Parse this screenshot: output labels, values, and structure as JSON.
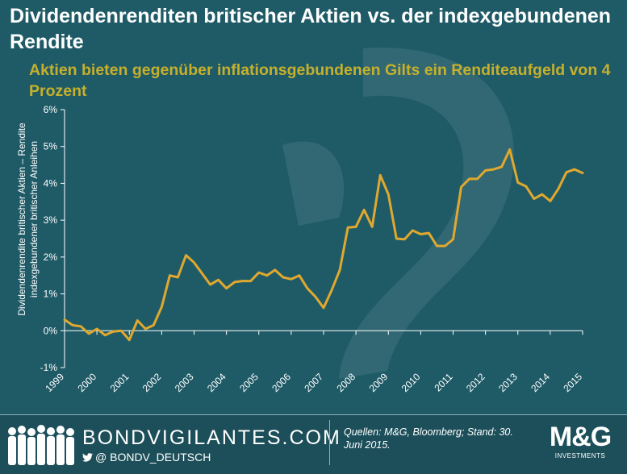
{
  "chart_data": {
    "type": "line",
    "title": "Dividendenrenditen britischer Aktien vs. der indexgebundenen Rendite",
    "subtitle": "Aktien bieten gegenüber inflationsgebundenen Gilts ein Renditeaufgeld von 4 Prozent",
    "ylabel": [
      "Dividendenrendite britischer Aktien – Rendite",
      "indexgebundener britischer Anleihen"
    ],
    "xlabel": "",
    "x_ticks": [
      "1999",
      "2000",
      "2001",
      "2002",
      "2003",
      "2004",
      "2005",
      "2006",
      "2007",
      "2008",
      "2009",
      "2010",
      "2011",
      "2012",
      "2013",
      "2014",
      "2015"
    ],
    "y_ticks": [
      "-1%",
      "0%",
      "1%",
      "2%",
      "3%",
      "4%",
      "5%",
      "6%"
    ],
    "ylim": [
      -1,
      6
    ],
    "xlim": [
      1999,
      2015
    ],
    "grid": false,
    "line_color": "#e0a82e",
    "series": [
      {
        "x": [
          1999.0,
          1999.25,
          1999.5,
          1999.75,
          2000.0,
          2000.25,
          2000.5,
          2000.75,
          2001.0,
          2001.25,
          2001.5,
          2001.75,
          2002.0,
          2002.25,
          2002.5,
          2002.75,
          2003.0,
          2003.25,
          2003.5,
          2003.75,
          2004.0,
          2004.25,
          2004.5,
          2004.75,
          2005.0,
          2005.25,
          2005.5,
          2005.75,
          2006.0,
          2006.25,
          2006.5,
          2006.75,
          2007.0,
          2007.25,
          2007.5,
          2007.75,
          2008.0,
          2008.25,
          2008.5,
          2008.75,
          2009.0,
          2009.25,
          2009.5,
          2009.75,
          2010.0,
          2010.25,
          2010.5,
          2010.75,
          2011.0,
          2011.25,
          2011.5,
          2011.75,
          2012.0,
          2012.25,
          2012.5,
          2012.75,
          2013.0,
          2013.25,
          2013.5,
          2013.75,
          2014.0,
          2014.25,
          2014.5,
          2014.75,
          2015.0
        ],
        "values": [
          0.3,
          0.15,
          0.12,
          -0.08,
          0.05,
          -0.12,
          -0.02,
          0.0,
          -0.25,
          0.28,
          0.05,
          0.15,
          0.65,
          1.5,
          1.45,
          2.05,
          1.85,
          1.55,
          1.25,
          1.38,
          1.15,
          1.32,
          1.35,
          1.35,
          1.58,
          1.5,
          1.65,
          1.45,
          1.4,
          1.5,
          1.15,
          0.92,
          0.62,
          1.1,
          1.65,
          2.8,
          2.82,
          3.28,
          2.82,
          4.22,
          3.7,
          2.5,
          2.48,
          2.72,
          2.62,
          2.65,
          2.3,
          2.3,
          2.48,
          3.9,
          4.12,
          4.12,
          4.35,
          4.38,
          4.45,
          4.92,
          4.02,
          3.92,
          3.58,
          3.7,
          3.52,
          3.85,
          4.3,
          4.38,
          4.28
        ]
      }
    ]
  },
  "footer": {
    "brand": "BONDVIGILANTES.COM",
    "twitter": "@ BONDV_DEUTSCH",
    "source": "Quellen: M&G, Bloomberg; Stand: 30. Juni 2015.",
    "logo": "M&G",
    "logo_sub": "INVESTMENTS"
  },
  "colors": {
    "background": "#1f5b67",
    "title": "#ffffff",
    "subtitle": "#c6b02b",
    "line": "#e0a82e",
    "axis": "#ffffff"
  }
}
